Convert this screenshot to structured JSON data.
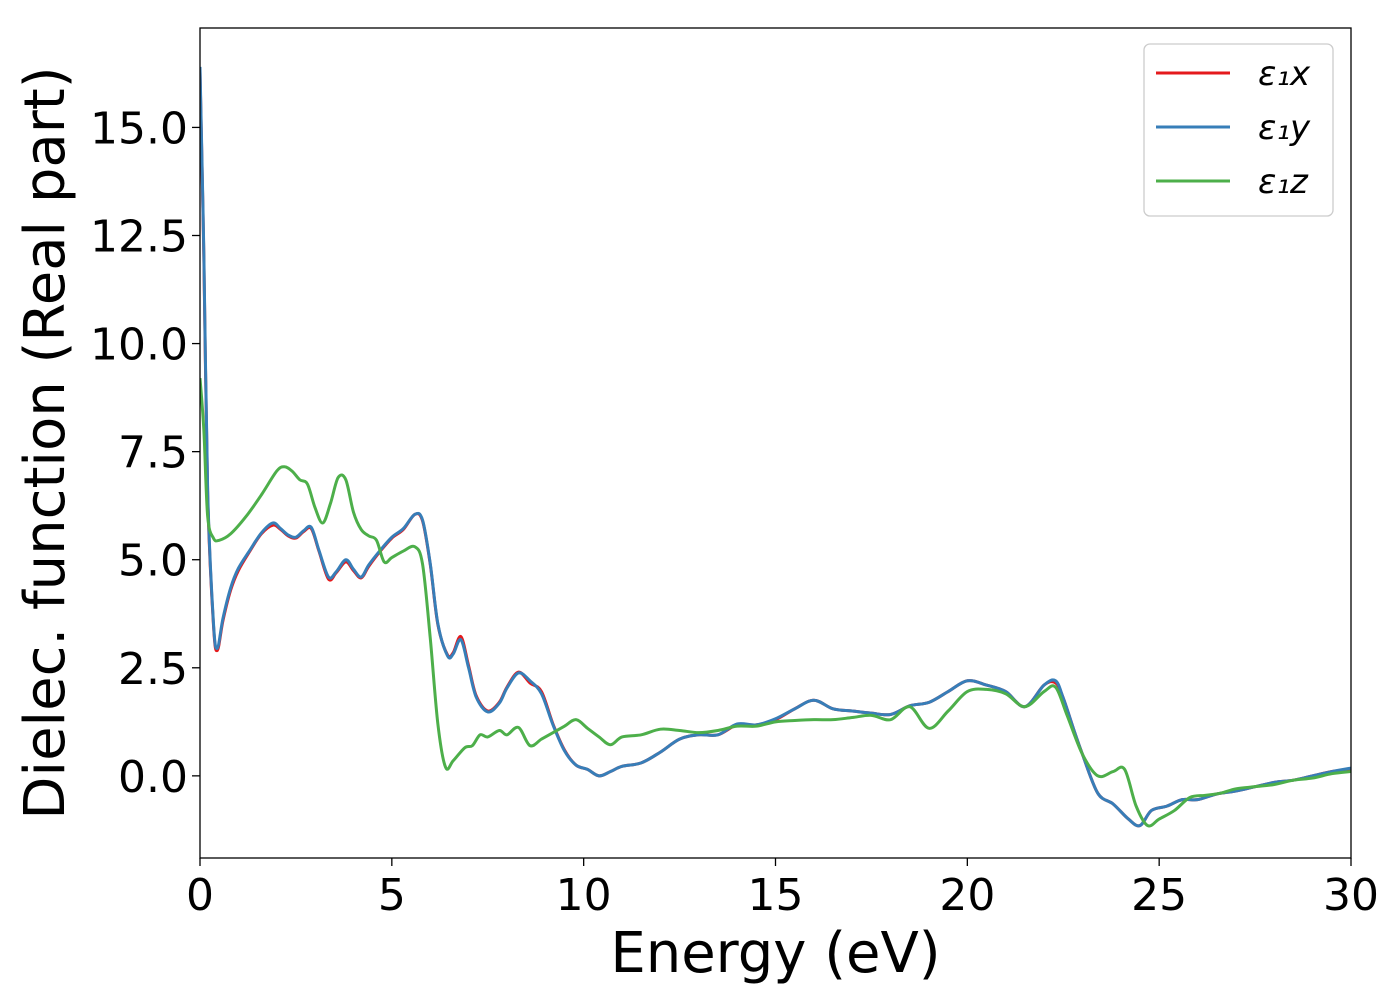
{
  "chart_data": {
    "type": "line",
    "xlabel": "Energy (eV)",
    "ylabel": "Dielec. function (Real part)",
    "xlim": [
      0,
      30
    ],
    "ylim": [
      -1.9,
      17.3
    ],
    "xticks": [
      "0",
      "5",
      "10",
      "15",
      "20",
      "25",
      "30"
    ],
    "xtick_values": [
      0,
      5,
      10,
      15,
      20,
      25,
      30
    ],
    "yticks": [
      "0.0",
      "2.5",
      "5.0",
      "7.5",
      "10.0",
      "12.5",
      "15.0"
    ],
    "ytick_values": [
      0,
      2.5,
      5,
      7.5,
      10,
      12.5,
      15
    ],
    "grid": false,
    "legend_position": "top-right",
    "series": [
      {
        "name": "ε₁x",
        "color": "#e41a1c",
        "x": [
          0,
          0.1,
          0.2,
          0.35,
          0.45,
          0.6,
          0.8,
          1.0,
          1.3,
          1.6,
          1.9,
          2.1,
          2.3,
          2.5,
          2.7,
          2.9,
          3.1,
          3.35,
          3.55,
          3.8,
          4.0,
          4.2,
          4.4,
          4.7,
          5.0,
          5.3,
          5.6,
          5.8,
          6.0,
          6.2,
          6.45,
          6.6,
          6.8,
          7.0,
          7.2,
          7.5,
          7.8,
          8.0,
          8.3,
          8.6,
          8.9,
          9.2,
          9.5,
          9.8,
          10.1,
          10.4,
          10.7,
          11.0,
          11.5,
          12.0,
          12.5,
          13.0,
          13.5,
          14.0,
          14.5,
          15.0,
          15.5,
          16.0,
          16.5,
          17.0,
          17.5,
          18.0,
          18.5,
          19.0,
          19.5,
          20.0,
          20.5,
          21.0,
          21.5,
          22.0,
          22.3,
          22.5,
          22.8,
          23.0,
          23.4,
          23.8,
          24.2,
          24.5,
          24.8,
          25.2,
          25.6,
          26.0,
          26.5,
          27.0,
          27.5,
          28.0,
          28.5,
          29.0,
          29.5,
          30.0
        ],
        "values": [
          16.3,
          12.0,
          6.5,
          3.5,
          2.9,
          3.6,
          4.3,
          4.75,
          5.2,
          5.6,
          5.8,
          5.7,
          5.55,
          5.5,
          5.65,
          5.72,
          5.2,
          4.55,
          4.7,
          4.95,
          4.75,
          4.58,
          4.85,
          5.2,
          5.5,
          5.7,
          6.05,
          5.9,
          4.9,
          3.5,
          2.8,
          2.85,
          3.22,
          2.55,
          1.85,
          1.5,
          1.7,
          2.05,
          2.4,
          2.15,
          1.95,
          1.2,
          0.6,
          0.25,
          0.15,
          0.0,
          0.1,
          0.22,
          0.3,
          0.55,
          0.85,
          0.95,
          0.95,
          1.18,
          1.18,
          1.3,
          1.55,
          1.75,
          1.55,
          1.5,
          1.45,
          1.42,
          1.62,
          1.7,
          1.95,
          2.2,
          2.1,
          1.95,
          1.6,
          2.1,
          2.15,
          1.8,
          1.0,
          0.5,
          -0.4,
          -0.65,
          -1.0,
          -1.15,
          -0.8,
          -0.7,
          -0.55,
          -0.55,
          -0.42,
          -0.35,
          -0.25,
          -0.15,
          -0.1,
          0.0,
          0.1,
          0.15
        ]
      },
      {
        "name": "ε₁y",
        "color": "#377eb8",
        "x": [
          0,
          0.1,
          0.2,
          0.35,
          0.45,
          0.6,
          0.8,
          1.0,
          1.3,
          1.6,
          1.9,
          2.1,
          2.3,
          2.5,
          2.7,
          2.9,
          3.1,
          3.35,
          3.55,
          3.8,
          4.0,
          4.2,
          4.4,
          4.7,
          5.0,
          5.3,
          5.6,
          5.8,
          6.0,
          6.2,
          6.45,
          6.6,
          6.8,
          7.0,
          7.2,
          7.5,
          7.8,
          8.0,
          8.3,
          8.6,
          8.9,
          9.2,
          9.5,
          9.8,
          10.1,
          10.4,
          10.7,
          11.0,
          11.5,
          12.0,
          12.5,
          13.0,
          13.5,
          14.0,
          14.5,
          15.0,
          15.5,
          16.0,
          16.5,
          17.0,
          17.5,
          18.0,
          18.5,
          19.0,
          19.5,
          20.0,
          20.5,
          21.0,
          21.5,
          22.0,
          22.3,
          22.5,
          22.8,
          23.0,
          23.4,
          23.8,
          24.2,
          24.5,
          24.8,
          25.2,
          25.6,
          26.0,
          26.5,
          27.0,
          27.5,
          28.0,
          28.5,
          29.0,
          29.5,
          30.0
        ],
        "values": [
          16.4,
          12.1,
          6.6,
          3.55,
          2.95,
          3.65,
          4.35,
          4.8,
          5.22,
          5.62,
          5.85,
          5.72,
          5.57,
          5.52,
          5.67,
          5.75,
          5.22,
          4.6,
          4.72,
          5.0,
          4.78,
          4.6,
          4.88,
          5.22,
          5.52,
          5.72,
          6.05,
          5.92,
          4.92,
          3.52,
          2.78,
          2.82,
          3.15,
          2.5,
          1.82,
          1.48,
          1.68,
          2.03,
          2.38,
          2.2,
          1.9,
          1.18,
          0.58,
          0.25,
          0.15,
          0.0,
          0.1,
          0.22,
          0.3,
          0.55,
          0.85,
          0.95,
          0.95,
          1.2,
          1.18,
          1.32,
          1.55,
          1.75,
          1.55,
          1.5,
          1.45,
          1.42,
          1.62,
          1.7,
          1.95,
          2.2,
          2.1,
          1.95,
          1.6,
          2.1,
          2.2,
          1.8,
          1.0,
          0.5,
          -0.4,
          -0.65,
          -1.0,
          -1.15,
          -0.8,
          -0.7,
          -0.55,
          -0.55,
          -0.42,
          -0.35,
          -0.25,
          -0.15,
          -0.1,
          0.0,
          0.1,
          0.18
        ]
      },
      {
        "name": "ε₁z",
        "color": "#4daf4a",
        "x": [
          0,
          0.1,
          0.2,
          0.35,
          0.5,
          0.8,
          1.2,
          1.6,
          2.0,
          2.2,
          2.4,
          2.6,
          2.8,
          3.0,
          3.2,
          3.4,
          3.6,
          3.8,
          4.0,
          4.2,
          4.4,
          4.6,
          4.8,
          5.0,
          5.3,
          5.6,
          5.8,
          6.0,
          6.2,
          6.4,
          6.6,
          6.9,
          7.1,
          7.3,
          7.5,
          7.8,
          8.0,
          8.3,
          8.6,
          8.9,
          9.2,
          9.5,
          9.8,
          10.1,
          10.4,
          10.7,
          11.0,
          11.5,
          12.0,
          12.5,
          13.0,
          13.5,
          14.0,
          14.5,
          15.0,
          15.5,
          16.0,
          16.5,
          17.0,
          17.5,
          18.0,
          18.5,
          19.0,
          19.5,
          20.0,
          20.5,
          21.0,
          21.5,
          22.0,
          22.3,
          22.6,
          23.0,
          23.4,
          23.8,
          24.1,
          24.4,
          24.7,
          25.0,
          25.4,
          25.8,
          26.2,
          26.6,
          27.0,
          27.5,
          28.0,
          28.5,
          29.0,
          29.5,
          30.0
        ],
        "values": [
          9.2,
          8.0,
          6.0,
          5.5,
          5.45,
          5.6,
          6.0,
          6.5,
          7.05,
          7.15,
          7.05,
          6.85,
          6.75,
          6.2,
          5.85,
          6.3,
          6.9,
          6.85,
          6.1,
          5.7,
          5.55,
          5.45,
          4.95,
          5.05,
          5.2,
          5.3,
          4.9,
          3.2,
          1.2,
          0.2,
          0.35,
          0.65,
          0.7,
          0.95,
          0.9,
          1.05,
          0.95,
          1.12,
          0.7,
          0.85,
          1.0,
          1.15,
          1.3,
          1.1,
          0.9,
          0.72,
          0.9,
          0.95,
          1.08,
          1.05,
          1.0,
          1.05,
          1.15,
          1.15,
          1.25,
          1.28,
          1.3,
          1.3,
          1.35,
          1.4,
          1.3,
          1.6,
          1.1,
          1.5,
          1.95,
          2.0,
          1.9,
          1.6,
          1.95,
          2.05,
          1.4,
          0.5,
          0.0,
          0.1,
          0.15,
          -0.7,
          -1.15,
          -1.0,
          -0.8,
          -0.5,
          -0.45,
          -0.4,
          -0.3,
          -0.25,
          -0.2,
          -0.1,
          -0.05,
          0.05,
          0.1
        ]
      }
    ]
  }
}
